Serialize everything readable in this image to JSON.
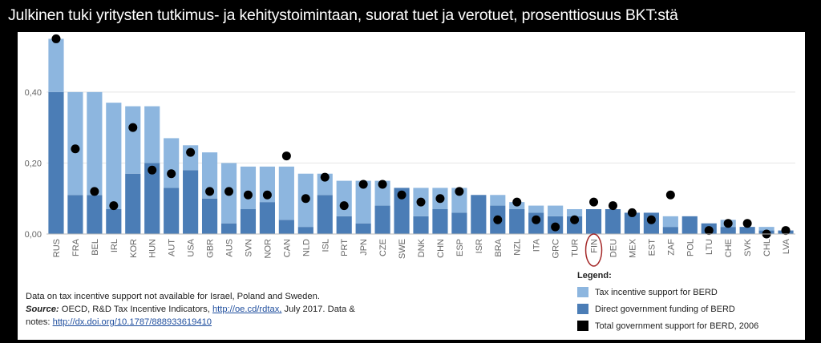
{
  "title": "Julkinen tuki yritysten tutkimus- ja kehitystoimintaan, suorat tuet ja verotuet, prosenttiosuus BKT:stä",
  "colors": {
    "tax": "#8db6df",
    "direct": "#4b7db6",
    "dot": "#000000",
    "highlight_circle": "#a52a2a",
    "grid": "#e4e4e4"
  },
  "notes": {
    "line1": "Data on tax incentive support not available for Israel, Poland and Sweden.",
    "source_label": "Source:",
    "source_text": " OECD, R&D Tax Incentive Indicators, ",
    "source_link": "http://oe.cd/rdtax,",
    "source_tail": " July 2017. Data &",
    "notes_text": "notes: ",
    "notes_link": "http://dx.doi.org/10.1787/888933619410"
  },
  "legend": {
    "title": "Legend:",
    "items": [
      {
        "label": "Tax incentive support for BERD",
        "color_key": "tax"
      },
      {
        "label": "Direct government funding of BERD",
        "color_key": "direct"
      },
      {
        "label": "Total government support for BERD, 2006",
        "color_key": "dot"
      }
    ]
  },
  "chart_data": {
    "type": "bar",
    "stacked": true,
    "highlight_category": "FIN",
    "ylim": [
      0,
      0.56
    ],
    "yticks": [
      0,
      0.2,
      0.4
    ],
    "ytick_labels": [
      "0,00",
      "0,20",
      "0,40"
    ],
    "grid": true,
    "legend_position": "bottom-right",
    "categories": [
      "RUS",
      "FRA",
      "BEL",
      "IRL",
      "KOR",
      "HUN",
      "AUT",
      "USA",
      "GBR",
      "AUS",
      "SVN",
      "NOR",
      "CAN",
      "NLD",
      "ISL",
      "PRT",
      "JPN",
      "CZE",
      "SWE",
      "DNK",
      "CHN",
      "ESP",
      "ISR",
      "BRA",
      "NZL",
      "ITA",
      "GRC",
      "TUR",
      "FIN",
      "DEU",
      "MEX",
      "EST",
      "ZAF",
      "POL",
      "LTU",
      "CHE",
      "SVK",
      "CHL",
      "LVA"
    ],
    "series": [
      {
        "name": "Direct government funding of BERD",
        "values": [
          0.4,
          0.11,
          0.11,
          0.07,
          0.17,
          0.2,
          0.13,
          0.18,
          0.1,
          0.03,
          0.07,
          0.09,
          0.04,
          0.02,
          0.11,
          0.05,
          0.03,
          0.08,
          0.13,
          0.05,
          0.07,
          0.06,
          0.11,
          0.08,
          0.07,
          0.06,
          0.05,
          0.05,
          0.07,
          0.07,
          0.06,
          0.06,
          0.02,
          0.05,
          0.03,
          0.02,
          0.02,
          0.01,
          0.01
        ]
      },
      {
        "name": "Tax incentive support for BERD",
        "values": [
          0.15,
          0.29,
          0.29,
          0.3,
          0.19,
          0.16,
          0.14,
          0.07,
          0.13,
          0.17,
          0.12,
          0.1,
          0.15,
          0.15,
          0.06,
          0.1,
          0.12,
          0.07,
          0.0,
          0.08,
          0.06,
          0.07,
          0.0,
          0.03,
          0.02,
          0.02,
          0.03,
          0.02,
          0.0,
          0.0,
          0.0,
          0.0,
          0.03,
          0.0,
          0.0,
          0.02,
          0.0,
          0.01,
          0.0
        ]
      },
      {
        "name": "Total government support for BERD, 2006",
        "type": "scatter",
        "values": [
          0.55,
          0.24,
          0.12,
          0.08,
          0.3,
          0.18,
          0.17,
          0.23,
          0.12,
          0.12,
          0.11,
          0.11,
          0.22,
          0.1,
          0.16,
          0.08,
          0.14,
          0.14,
          0.11,
          0.09,
          0.1,
          0.12,
          null,
          0.04,
          0.09,
          0.04,
          0.02,
          0.04,
          0.09,
          0.08,
          0.06,
          0.04,
          0.11,
          null,
          0.01,
          0.03,
          0.03,
          0.0,
          0.01
        ]
      }
    ]
  }
}
